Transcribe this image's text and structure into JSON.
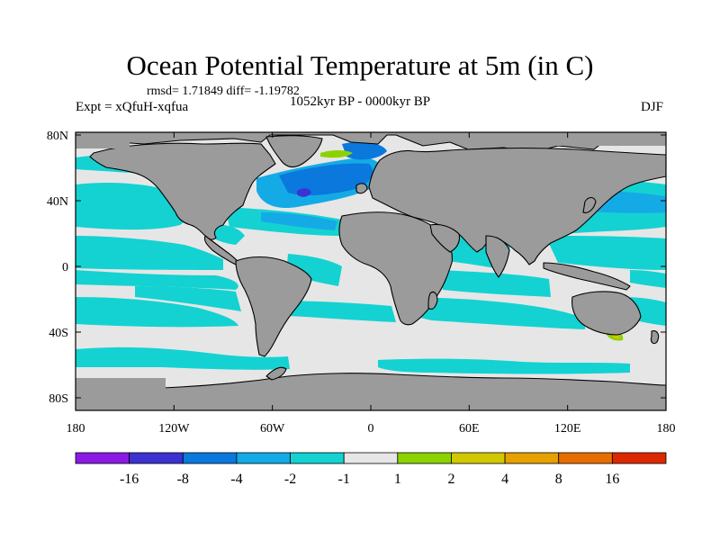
{
  "figure": {
    "title": "Ocean Potential Temperature at 5m (in C)",
    "stats": "rmsd= 1.71849 diff= -1.19782",
    "period": "1052kyr BP - 0000kyr BP",
    "experiment": "Expt = xQfuH-xqfua",
    "season": "DJF"
  },
  "axes": {
    "lat_labels": [
      "80N",
      "40N",
      "0",
      "40S",
      "80S"
    ],
    "lat_values": [
      80,
      40,
      0,
      -40,
      -80
    ],
    "lon_labels": [
      "180",
      "120W",
      "60W",
      "0",
      "60E",
      "120E",
      "180"
    ],
    "lon_values": [
      -180,
      -120,
      -60,
      0,
      60,
      120,
      180
    ]
  },
  "colorbar": {
    "labels": [
      "-16",
      "-8",
      "-4",
      "-2",
      "-1",
      "1",
      "2",
      "4",
      "8",
      "16"
    ],
    "colors": [
      "#8c1ae6",
      "#3c32d2",
      "#0a78dc",
      "#14aae6",
      "#14d2d2",
      "#e6e6e6",
      "#8cd200",
      "#d2c800",
      "#e6a000",
      "#e66e00",
      "#dc2800"
    ]
  },
  "palette": {
    "land": "#9b9b9b",
    "near_zero": "#e6e6e6",
    "cyan": "#14d2d2",
    "light_blue": "#14aae6",
    "blue": "#0a78dc",
    "dark_blue": "#3c32d2",
    "green": "#8cd200",
    "yellow": "#d2c800"
  }
}
